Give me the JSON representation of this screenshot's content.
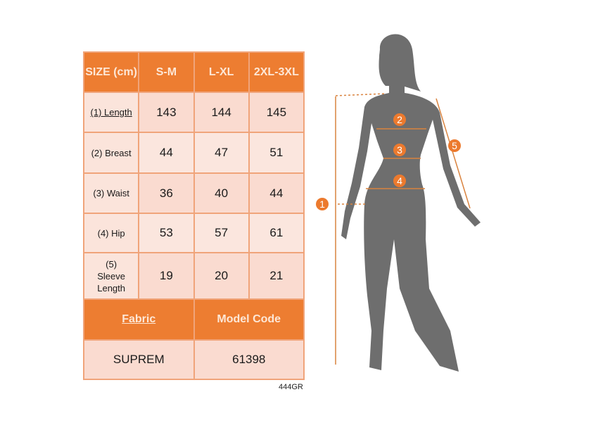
{
  "table": {
    "header": [
      "SIZE (cm)",
      "S-M",
      "L-XL",
      "2XL-3XL"
    ],
    "rows": [
      {
        "label": "(1) Length",
        "values": [
          "143",
          "144",
          "145"
        ]
      },
      {
        "label": "(2) Breast",
        "values": [
          "44",
          "47",
          "51"
        ]
      },
      {
        "label": "(3) Waist",
        "values": [
          "36",
          "40",
          "44"
        ]
      },
      {
        "label": "(4) Hip",
        "values": [
          "53",
          "57",
          "61"
        ]
      },
      {
        "label": "(5) Sleeve Length",
        "values": [
          "19",
          "20",
          "21"
        ]
      }
    ],
    "footer_header": [
      "Fabric",
      "Model Code"
    ],
    "footer_values": [
      "SUPREM",
      "61398"
    ]
  },
  "code": "444GR",
  "figure": {
    "markers": [
      "1",
      "2",
      "3",
      "4",
      "5"
    ]
  },
  "colors": {
    "accent": "#ed7d31",
    "cell": "#fadbd0",
    "silhouette": "#6e6e6e"
  }
}
